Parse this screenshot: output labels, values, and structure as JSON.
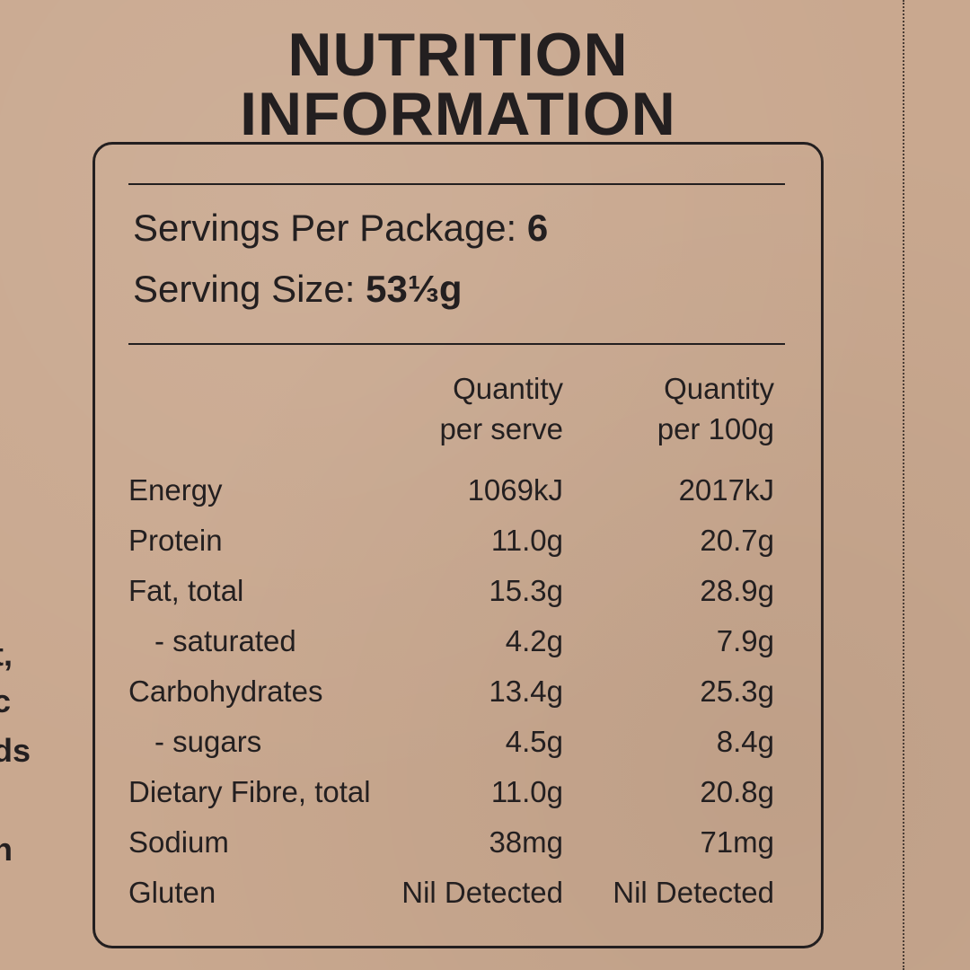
{
  "header": {
    "title_lines": [
      "NUTRITION",
      "INFORMATION"
    ]
  },
  "servings": {
    "per_package_label": "Servings Per Package:",
    "per_package": "6",
    "size_label": "Serving Size:",
    "size": "53⅓g"
  },
  "table": {
    "columns": [
      [
        "Quantity",
        "per serve"
      ],
      [
        "Quantity",
        "per 100g"
      ]
    ],
    "rows": [
      [
        "Energy",
        "1069kJ",
        "2017kJ"
      ],
      [
        "Protein",
        "11.0g",
        "20.7g"
      ],
      [
        "Fat, total",
        "15.3g",
        "28.9g"
      ],
      [
        "- saturated",
        "4.2g",
        "7.9g"
      ],
      [
        "Carbohydrates",
        "13.4g",
        "25.3g"
      ],
      [
        "- sugars",
        "4.5g",
        "8.4g"
      ],
      [
        "Dietary Fibre, total",
        "11.0g",
        "20.8g"
      ],
      [
        "Sodium",
        "38mg",
        "71mg"
      ],
      [
        "Gluten",
        "Nil Detected",
        "Nil Detected"
      ]
    ]
  },
  "side_fragments": [
    "t,",
    "c",
    "ds",
    ",",
    "n"
  ]
}
